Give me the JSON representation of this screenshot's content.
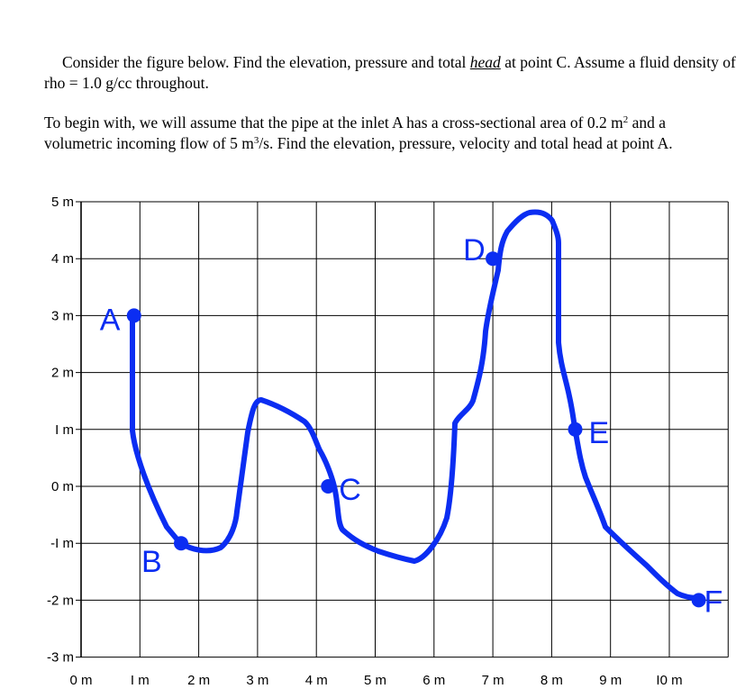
{
  "problem": {
    "p1_before": "Consider the figure below. Find the elevation, pressure and total ",
    "p1_em": "head",
    "p1_after": " at point C. Assume a fluid density of rho = 1.0 g/cc throughout.",
    "p2_a": "To begin with, we will assume that the pipe at the inlet A has a cross-sectional area of 0.2 m",
    "p2_sup1": "2",
    "p2_b": " and a volumetric incoming flow of 5 m",
    "p2_sup2": "3",
    "p2_c": "/s. Find the elevation, pressure, velocity and total head at point A."
  },
  "figure": {
    "y_ticks": [
      "5 m",
      "4 m",
      "3 m",
      "2 m",
      "I m",
      "0 m",
      "-I m",
      "-2 m",
      "-3 m"
    ],
    "x_ticks": [
      "0 m",
      "I m",
      "2 m",
      "3 m",
      "4 m",
      "5 m",
      "6 m",
      "7 m",
      "8 m",
      "9 m",
      "I0 m"
    ],
    "x_range_m": [
      0,
      11
    ],
    "y_range_m": [
      -3,
      5
    ],
    "grid": true,
    "pipe_color": "#0b2df2",
    "points": [
      {
        "label": "A",
        "x": 0.9,
        "y": 3.0
      },
      {
        "label": "B",
        "x": 1.7,
        "y": -1.0
      },
      {
        "label": "C",
        "x": 4.2,
        "y": 0.0
      },
      {
        "label": "D",
        "x": 7.0,
        "y": 4.0
      },
      {
        "label": "E",
        "x": 8.4,
        "y": 1.0
      },
      {
        "label": "F",
        "x": 10.5,
        "y": -2.0
      }
    ]
  }
}
